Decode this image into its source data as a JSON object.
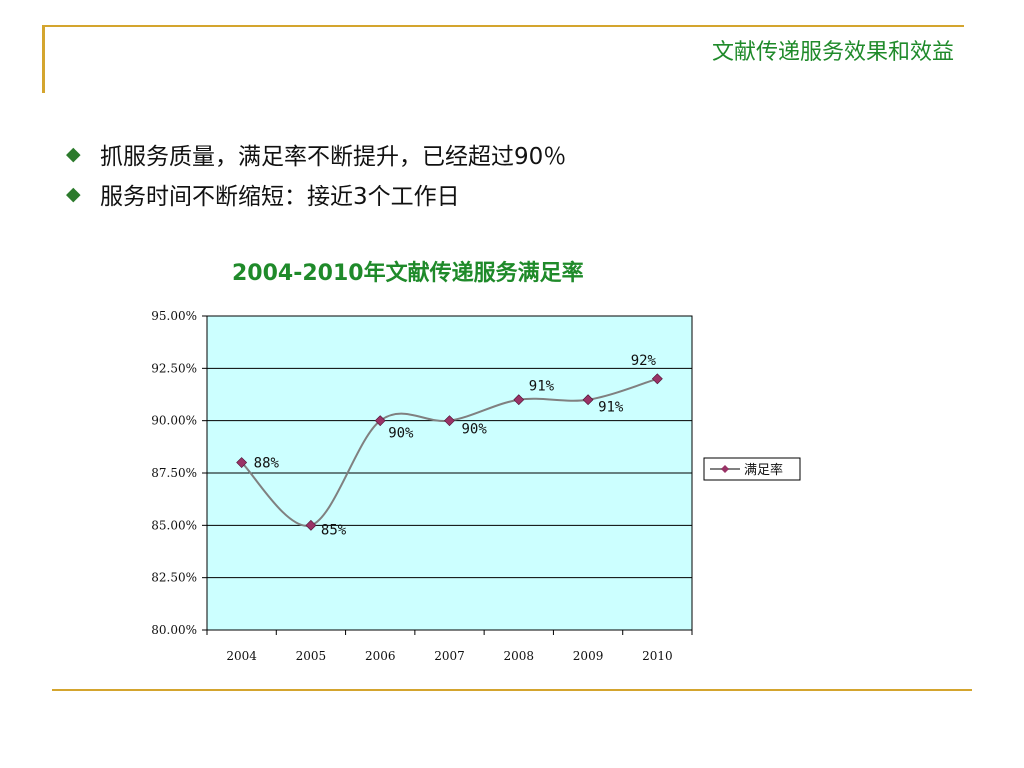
{
  "slide": {
    "title": "文献传递服务效果和效益",
    "bullets": [
      {
        "text": "抓服务质量，满足率不断提升，已经超过90％"
      },
      {
        "text": "服务时间不断缩短：接近3个工作日"
      }
    ]
  },
  "colors": {
    "accent_line": "#D4A52E",
    "title_green": "#1F8A2A",
    "plot_bg": "#CCFFFF",
    "series_line": "#808080",
    "marker_fill": "#993366"
  },
  "icons": {
    "bullet": "diamond-icon"
  },
  "chart_data": {
    "type": "line",
    "title": "2004-2010年文献传递服务满足率",
    "categories": [
      "2004",
      "2005",
      "2006",
      "2007",
      "2008",
      "2009",
      "2010"
    ],
    "series": [
      {
        "name": "满足率",
        "values": [
          88.0,
          85.0,
          90.0,
          90.0,
          91.0,
          91.0,
          92.0
        ],
        "labels": [
          "88%",
          "85%",
          "90%",
          "90%",
          "91%",
          "91%",
          "92%"
        ]
      }
    ],
    "ylim": [
      80,
      95
    ],
    "yticks": [
      "80.00%",
      "82.50%",
      "85.00%",
      "87.50%",
      "90.00%",
      "92.50%",
      "95.00%"
    ],
    "ytick_values": [
      80,
      82.5,
      85,
      87.5,
      90,
      92.5,
      95
    ],
    "grid": true,
    "smoothed": true,
    "legend": "right"
  }
}
